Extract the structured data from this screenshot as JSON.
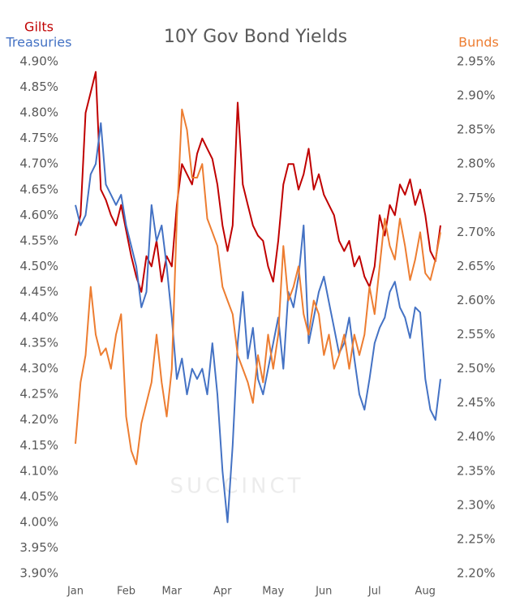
{
  "chart_data": {
    "type": "line",
    "title": "10Y Gov Bond Yields",
    "watermark": "SUCCINCT",
    "categories": [
      "Jan",
      null,
      null,
      null,
      null,
      null,
      null,
      null,
      null,
      null,
      "Feb",
      null,
      null,
      null,
      null,
      null,
      null,
      null,
      null,
      "Mar",
      null,
      null,
      null,
      null,
      null,
      null,
      null,
      null,
      null,
      "Apr",
      null,
      null,
      null,
      null,
      null,
      null,
      null,
      null,
      null,
      "May",
      null,
      null,
      null,
      null,
      null,
      null,
      null,
      null,
      null,
      "Jun",
      null,
      null,
      null,
      null,
      null,
      null,
      null,
      null,
      null,
      "Jul",
      null,
      null,
      null,
      null,
      null,
      null,
      null,
      null,
      null,
      "Aug",
      null,
      null,
      null
    ],
    "series": [
      {
        "name": "Gilts",
        "color": "#c00000",
        "values": [
          4.56,
          4.6,
          4.8,
          4.84,
          4.88,
          4.65,
          4.63,
          4.6,
          4.58,
          4.62,
          4.57,
          4.52,
          4.48,
          4.45,
          4.52,
          4.5,
          4.55,
          4.47,
          4.52,
          4.5,
          4.62,
          4.7,
          4.68,
          4.66,
          4.72,
          4.75,
          4.73,
          4.71,
          4.66,
          4.58,
          4.53,
          4.58,
          4.82,
          4.66,
          4.62,
          4.58,
          4.56,
          4.55,
          4.5,
          4.47,
          4.55,
          4.66,
          4.7,
          4.7,
          4.65,
          4.68,
          4.73,
          4.65,
          4.68,
          4.64,
          4.62,
          4.6,
          4.55,
          4.53,
          4.55,
          4.5,
          4.52,
          4.48,
          4.46,
          4.5,
          4.6,
          4.56,
          4.62,
          4.6,
          4.66,
          4.64,
          4.67,
          4.62,
          4.65,
          4.6,
          4.53,
          4.51,
          4.58
        ]
      },
      {
        "name": "Treasuries",
        "color": "#4472c4",
        "values": [
          4.62,
          4.58,
          4.6,
          4.68,
          4.7,
          4.78,
          4.66,
          4.64,
          4.62,
          4.64,
          4.58,
          4.54,
          4.5,
          4.42,
          4.45,
          4.62,
          4.55,
          4.58,
          4.5,
          4.4,
          4.28,
          4.32,
          4.25,
          4.3,
          4.28,
          4.3,
          4.25,
          4.35,
          4.25,
          4.1,
          4.0,
          4.15,
          4.35,
          4.45,
          4.32,
          4.38,
          4.28,
          4.25,
          4.3,
          4.35,
          4.4,
          4.3,
          4.45,
          4.42,
          4.48,
          4.58,
          4.35,
          4.4,
          4.45,
          4.48,
          4.43,
          4.38,
          4.33,
          4.35,
          4.4,
          4.32,
          4.25,
          4.22,
          4.28,
          4.35,
          4.38,
          4.4,
          4.45,
          4.47,
          4.42,
          4.4,
          4.36,
          4.42,
          4.41,
          4.28,
          4.22,
          4.2,
          4.28
        ]
      },
      {
        "name": "Bunds",
        "color": "#ed7d31",
        "axis": "y2",
        "values": [
          2.39,
          2.48,
          2.52,
          2.62,
          2.55,
          2.52,
          2.53,
          2.5,
          2.55,
          2.58,
          2.43,
          2.38,
          2.36,
          2.42,
          2.45,
          2.48,
          2.55,
          2.48,
          2.43,
          2.5,
          2.72,
          2.88,
          2.85,
          2.78,
          2.78,
          2.8,
          2.72,
          2.7,
          2.68,
          2.62,
          2.6,
          2.58,
          2.52,
          2.5,
          2.48,
          2.45,
          2.52,
          2.48,
          2.55,
          2.5,
          2.55,
          2.68,
          2.6,
          2.62,
          2.65,
          2.58,
          2.55,
          2.6,
          2.58,
          2.52,
          2.55,
          2.5,
          2.52,
          2.55,
          2.5,
          2.55,
          2.52,
          2.55,
          2.62,
          2.58,
          2.65,
          2.72,
          2.68,
          2.66,
          2.72,
          2.68,
          2.63,
          2.66,
          2.7,
          2.64,
          2.63,
          2.66,
          2.7
        ]
      }
    ],
    "ylim": [
      3.9,
      4.9
    ],
    "yticks": [
      {
        "value": 3.9,
        "label": "3.90%"
      },
      {
        "value": 3.95,
        "label": "3.95%"
      },
      {
        "value": 4.0,
        "label": "4.00%"
      },
      {
        "value": 4.05,
        "label": "4.05%"
      },
      {
        "value": 4.1,
        "label": "4.10%"
      },
      {
        "value": 4.15,
        "label": "4.15%"
      },
      {
        "value": 4.2,
        "label": "4.20%"
      },
      {
        "value": 4.25,
        "label": "4.25%"
      },
      {
        "value": 4.3,
        "label": "4.30%"
      },
      {
        "value": 4.35,
        "label": "4.35%"
      },
      {
        "value": 4.4,
        "label": "4.40%"
      },
      {
        "value": 4.45,
        "label": "4.45%"
      },
      {
        "value": 4.5,
        "label": "4.50%"
      },
      {
        "value": 4.55,
        "label": "4.55%"
      },
      {
        "value": 4.6,
        "label": "4.60%"
      },
      {
        "value": 4.65,
        "label": "4.65%"
      },
      {
        "value": 4.7,
        "label": "4.70%"
      },
      {
        "value": 4.75,
        "label": "4.75%"
      },
      {
        "value": 4.8,
        "label": "4.80%"
      },
      {
        "value": 4.85,
        "label": "4.85%"
      },
      {
        "value": 4.9,
        "label": "4.90%"
      }
    ],
    "y2lim": [
      2.2,
      2.95
    ],
    "y2ticks": [
      {
        "value": 2.2,
        "label": "2.20%"
      },
      {
        "value": 2.25,
        "label": "2.25%"
      },
      {
        "value": 2.3,
        "label": "2.30%"
      },
      {
        "value": 2.35,
        "label": "2.35%"
      },
      {
        "value": 2.4,
        "label": "2.40%"
      },
      {
        "value": 2.45,
        "label": "2.45%"
      },
      {
        "value": 2.5,
        "label": "2.50%"
      },
      {
        "value": 2.55,
        "label": "2.55%"
      },
      {
        "value": 2.6,
        "label": "2.60%"
      },
      {
        "value": 2.65,
        "label": "2.65%"
      },
      {
        "value": 2.7,
        "label": "2.70%"
      },
      {
        "value": 2.75,
        "label": "2.75%"
      },
      {
        "value": 2.8,
        "label": "2.80%"
      },
      {
        "value": 2.85,
        "label": "2.85%"
      },
      {
        "value": 2.9,
        "label": "2.90%"
      },
      {
        "value": 2.95,
        "label": "2.95%"
      }
    ],
    "grid": false
  }
}
